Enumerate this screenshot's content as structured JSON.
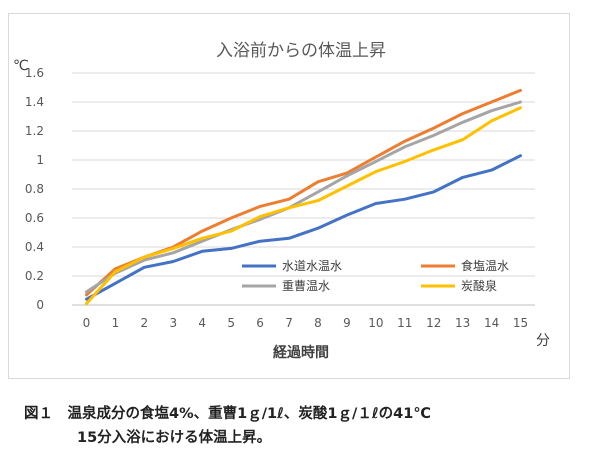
{
  "chart_data": {
    "type": "line",
    "title": "入浴前からの体温上昇",
    "ylabel": "℃",
    "xlabel": "経過時間",
    "x_unit": "分",
    "x": [
      0,
      1,
      2,
      3,
      4,
      5,
      6,
      7,
      8,
      9,
      10,
      11,
      12,
      13,
      14,
      15
    ],
    "x_tick_labels": [
      "0",
      "1",
      "2",
      "3",
      "4",
      "5",
      "6",
      "7",
      "8",
      "9",
      "10",
      "11",
      "12",
      "13",
      "14",
      "15"
    ],
    "y_ticks": [
      0,
      0.2,
      0.4,
      0.6,
      0.8,
      1,
      1.2,
      1.4,
      1.6
    ],
    "y_tick_labels": [
      "0",
      "0.2",
      "0.4",
      "0.6",
      "0.8",
      "1",
      "1.2",
      "1.4",
      "1.6"
    ],
    "ylim": [
      0,
      1.6
    ],
    "grid": true,
    "legend_position": "inside-lower-right",
    "series": [
      {
        "name": "水道水温水",
        "color": "#4472C4",
        "values": [
          0.04,
          0.15,
          0.26,
          0.3,
          0.37,
          0.39,
          0.44,
          0.46,
          0.53,
          0.62,
          0.7,
          0.73,
          0.78,
          0.88,
          0.93,
          1.03
        ]
      },
      {
        "name": "食塩温水",
        "color": "#ED7D31",
        "values": [
          0.07,
          0.25,
          0.33,
          0.4,
          0.51,
          0.6,
          0.68,
          0.73,
          0.85,
          0.91,
          1.02,
          1.13,
          1.22,
          1.32,
          1.4,
          1.48
        ]
      },
      {
        "name": "重曹温水",
        "color": "#A5A5A5",
        "values": [
          0.09,
          0.22,
          0.31,
          0.36,
          0.44,
          0.52,
          0.59,
          0.67,
          0.78,
          0.89,
          0.99,
          1.09,
          1.17,
          1.26,
          1.34,
          1.4
        ]
      },
      {
        "name": "炭酸泉",
        "color": "#FFC000",
        "values": [
          0.01,
          0.23,
          0.33,
          0.39,
          0.46,
          0.51,
          0.61,
          0.67,
          0.72,
          0.82,
          0.92,
          0.99,
          1.07,
          1.14,
          1.27,
          1.36
        ]
      }
    ]
  },
  "caption": {
    "line1": "図１　温泉成分の食塩4%、重曹1ｇ/1ℓ、炭酸1ｇ/１ℓの41℃",
    "line2": "15分入浴における体温上昇。"
  }
}
